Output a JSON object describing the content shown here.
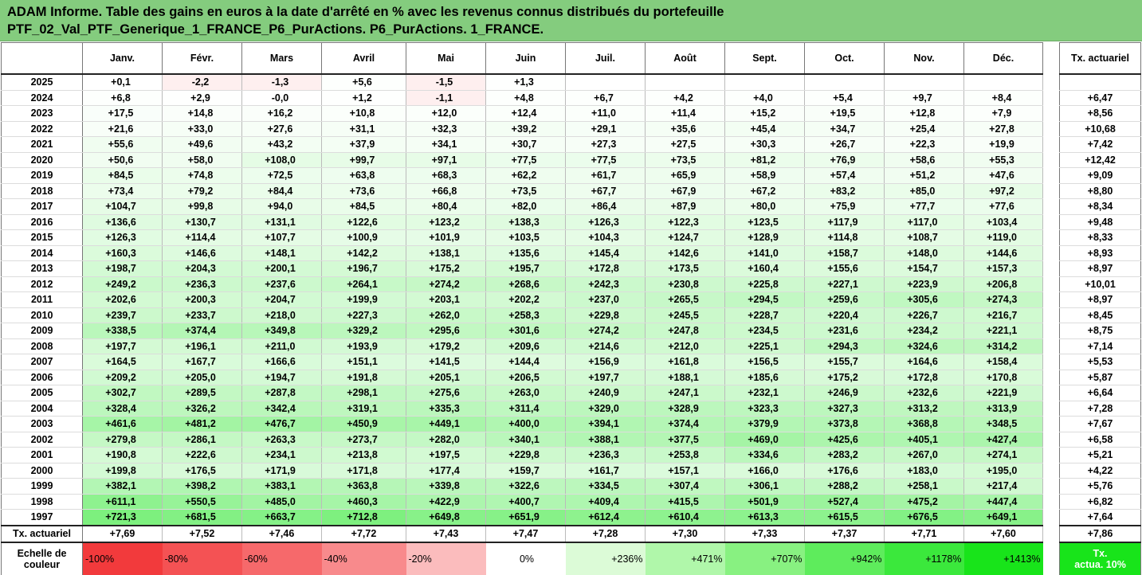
{
  "title": {
    "line1": "ADAM Informe. Table des gains en euros à la date d'arrêté en % avec les revenus connus distribués du portefeuille",
    "line2": "PTF_02_Val_PTF_Generique_1_FRANCE_P6_PurActions. P6_PurActions. 1_FRANCE."
  },
  "months": [
    "Janv.",
    "Févr.",
    "Mars",
    "Avril",
    "Mai",
    "Juin",
    "Juil.",
    "Août",
    "Sept.",
    "Oct.",
    "Nov.",
    "Déc."
  ],
  "actuarial_header": "Tx. actuariel",
  "rows": [
    {
      "year": "2025",
      "values": [
        "+0,1",
        "-2,2",
        "-1,3",
        "+5,6",
        "-1,5",
        "+1,3",
        "",
        "",
        "",
        "",
        "",
        ""
      ],
      "rate": ""
    },
    {
      "year": "2024",
      "values": [
        "+6,8",
        "+2,9",
        "-0,0",
        "+1,2",
        "-1,1",
        "+4,8",
        "+6,7",
        "+4,2",
        "+4,0",
        "+5,4",
        "+9,7",
        "+8,4"
      ],
      "rate": "+6,47"
    },
    {
      "year": "2023",
      "values": [
        "+17,5",
        "+14,8",
        "+16,2",
        "+10,8",
        "+12,0",
        "+12,4",
        "+11,0",
        "+11,4",
        "+15,2",
        "+19,5",
        "+12,8",
        "+7,9"
      ],
      "rate": "+8,56"
    },
    {
      "year": "2022",
      "values": [
        "+21,6",
        "+33,0",
        "+27,6",
        "+31,1",
        "+32,3",
        "+39,2",
        "+29,1",
        "+35,6",
        "+45,4",
        "+34,7",
        "+25,4",
        "+27,8"
      ],
      "rate": "+10,68"
    },
    {
      "year": "2021",
      "values": [
        "+55,6",
        "+49,6",
        "+43,2",
        "+37,9",
        "+34,1",
        "+30,7",
        "+27,3",
        "+27,5",
        "+30,3",
        "+26,7",
        "+22,3",
        "+19,9"
      ],
      "rate": "+7,42"
    },
    {
      "year": "2020",
      "values": [
        "+50,6",
        "+58,0",
        "+108,0",
        "+99,7",
        "+97,1",
        "+77,5",
        "+77,5",
        "+73,5",
        "+81,2",
        "+76,9",
        "+58,6",
        "+55,3"
      ],
      "rate": "+12,42"
    },
    {
      "year": "2019",
      "values": [
        "+84,5",
        "+74,8",
        "+72,5",
        "+63,8",
        "+68,3",
        "+62,2",
        "+61,7",
        "+65,9",
        "+58,9",
        "+57,4",
        "+51,2",
        "+47,6"
      ],
      "rate": "+9,09"
    },
    {
      "year": "2018",
      "values": [
        "+73,4",
        "+79,2",
        "+84,4",
        "+73,6",
        "+66,8",
        "+73,5",
        "+67,7",
        "+67,9",
        "+67,2",
        "+83,2",
        "+85,0",
        "+97,2"
      ],
      "rate": "+8,80"
    },
    {
      "year": "2017",
      "values": [
        "+104,7",
        "+99,8",
        "+94,0",
        "+84,5",
        "+80,4",
        "+82,0",
        "+86,4",
        "+87,9",
        "+80,0",
        "+75,9",
        "+77,7",
        "+77,6"
      ],
      "rate": "+8,34"
    },
    {
      "year": "2016",
      "values": [
        "+136,6",
        "+130,7",
        "+131,1",
        "+122,6",
        "+123,2",
        "+138,3",
        "+126,3",
        "+122,3",
        "+123,5",
        "+117,9",
        "+117,0",
        "+103,4"
      ],
      "rate": "+9,48"
    },
    {
      "year": "2015",
      "values": [
        "+126,3",
        "+114,4",
        "+107,7",
        "+100,9",
        "+101,9",
        "+103,5",
        "+104,3",
        "+124,7",
        "+128,9",
        "+114,8",
        "+108,7",
        "+119,0"
      ],
      "rate": "+8,33"
    },
    {
      "year": "2014",
      "values": [
        "+160,3",
        "+146,6",
        "+148,1",
        "+142,2",
        "+138,1",
        "+135,6",
        "+145,4",
        "+142,6",
        "+141,0",
        "+158,7",
        "+148,0",
        "+144,6"
      ],
      "rate": "+8,93"
    },
    {
      "year": "2013",
      "values": [
        "+198,7",
        "+204,3",
        "+200,1",
        "+196,7",
        "+175,2",
        "+195,7",
        "+172,8",
        "+173,5",
        "+160,4",
        "+155,6",
        "+154,7",
        "+157,3"
      ],
      "rate": "+8,97"
    },
    {
      "year": "2012",
      "values": [
        "+249,2",
        "+236,3",
        "+237,6",
        "+264,1",
        "+274,2",
        "+268,6",
        "+242,3",
        "+230,8",
        "+225,8",
        "+227,1",
        "+223,9",
        "+206,8"
      ],
      "rate": "+10,01"
    },
    {
      "year": "2011",
      "values": [
        "+202,6",
        "+200,3",
        "+204,7",
        "+199,9",
        "+203,1",
        "+202,2",
        "+237,0",
        "+265,5",
        "+294,5",
        "+259,6",
        "+305,6",
        "+274,3"
      ],
      "rate": "+8,97"
    },
    {
      "year": "2010",
      "values": [
        "+239,7",
        "+233,7",
        "+218,0",
        "+227,3",
        "+262,0",
        "+258,3",
        "+229,8",
        "+245,5",
        "+228,7",
        "+220,4",
        "+226,7",
        "+216,7"
      ],
      "rate": "+8,45"
    },
    {
      "year": "2009",
      "values": [
        "+338,5",
        "+374,4",
        "+349,8",
        "+329,2",
        "+295,6",
        "+301,6",
        "+274,2",
        "+247,8",
        "+234,5",
        "+231,6",
        "+234,2",
        "+221,1"
      ],
      "rate": "+8,75"
    },
    {
      "year": "2008",
      "values": [
        "+197,7",
        "+196,1",
        "+211,0",
        "+193,9",
        "+179,2",
        "+209,6",
        "+214,6",
        "+212,0",
        "+225,1",
        "+294,3",
        "+324,6",
        "+314,2"
      ],
      "rate": "+7,14"
    },
    {
      "year": "2007",
      "values": [
        "+164,5",
        "+167,7",
        "+166,6",
        "+151,1",
        "+141,5",
        "+144,4",
        "+156,9",
        "+161,8",
        "+156,5",
        "+155,7",
        "+164,6",
        "+158,4"
      ],
      "rate": "+5,53"
    },
    {
      "year": "2006",
      "values": [
        "+209,2",
        "+205,0",
        "+194,7",
        "+191,8",
        "+205,1",
        "+206,5",
        "+197,7",
        "+188,1",
        "+185,6",
        "+175,2",
        "+172,8",
        "+170,8"
      ],
      "rate": "+5,87"
    },
    {
      "year": "2005",
      "values": [
        "+302,7",
        "+289,5",
        "+287,8",
        "+298,1",
        "+275,6",
        "+263,0",
        "+240,9",
        "+247,1",
        "+232,1",
        "+246,9",
        "+232,6",
        "+221,9"
      ],
      "rate": "+6,64"
    },
    {
      "year": "2004",
      "values": [
        "+328,4",
        "+326,2",
        "+342,4",
        "+319,1",
        "+335,3",
        "+311,4",
        "+329,0",
        "+328,9",
        "+323,3",
        "+327,3",
        "+313,2",
        "+313,9"
      ],
      "rate": "+7,28"
    },
    {
      "year": "2003",
      "values": [
        "+461,6",
        "+481,2",
        "+476,7",
        "+450,9",
        "+449,1",
        "+400,0",
        "+394,1",
        "+374,4",
        "+379,9",
        "+373,8",
        "+368,8",
        "+348,5"
      ],
      "rate": "+7,67"
    },
    {
      "year": "2002",
      "values": [
        "+279,8",
        "+286,1",
        "+263,3",
        "+273,7",
        "+282,0",
        "+340,1",
        "+388,1",
        "+377,5",
        "+469,0",
        "+425,6",
        "+405,1",
        "+427,4"
      ],
      "rate": "+6,58"
    },
    {
      "year": "2001",
      "values": [
        "+190,8",
        "+222,6",
        "+234,1",
        "+213,8",
        "+197,5",
        "+229,8",
        "+236,3",
        "+253,8",
        "+334,6",
        "+283,2",
        "+267,0",
        "+274,1"
      ],
      "rate": "+5,21"
    },
    {
      "year": "2000",
      "values": [
        "+199,8",
        "+176,5",
        "+171,9",
        "+171,8",
        "+177,4",
        "+159,7",
        "+161,7",
        "+157,1",
        "+166,0",
        "+176,6",
        "+183,0",
        "+195,0"
      ],
      "rate": "+4,22"
    },
    {
      "year": "1999",
      "values": [
        "+382,1",
        "+398,2",
        "+383,1",
        "+363,8",
        "+339,8",
        "+322,6",
        "+334,5",
        "+307,4",
        "+306,1",
        "+288,2",
        "+258,1",
        "+217,4"
      ],
      "rate": "+5,76"
    },
    {
      "year": "1998",
      "values": [
        "+611,1",
        "+550,5",
        "+485,0",
        "+460,3",
        "+422,9",
        "+400,7",
        "+409,4",
        "+415,5",
        "+501,9",
        "+527,4",
        "+475,2",
        "+447,4"
      ],
      "rate": "+6,82"
    },
    {
      "year": "1997",
      "values": [
        "+721,3",
        "+681,5",
        "+663,7",
        "+712,8",
        "+649,8",
        "+651,9",
        "+612,4",
        "+610,4",
        "+613,3",
        "+615,5",
        "+676,5",
        "+649,1"
      ],
      "rate": "+7,64"
    }
  ],
  "footer": {
    "label": "Tx. actuariel",
    "values": [
      "+7,69",
      "+7,52",
      "+7,46",
      "+7,72",
      "+7,43",
      "+7,47",
      "+7,28",
      "+7,30",
      "+7,33",
      "+7,37",
      "+7,71",
      "+7,60"
    ],
    "rate": "+7,86"
  },
  "legend": {
    "label_line1": "Echelle de",
    "label_line2": "couleur",
    "swatches": [
      {
        "label": "-100%",
        "color": "#f23a3c"
      },
      {
        "label": "-80%",
        "color": "#f45254"
      },
      {
        "label": "-60%",
        "color": "#f6696b"
      },
      {
        "label": "-40%",
        "color": "#f88a8c"
      },
      {
        "label": "-20%",
        "color": "#fbbcbd"
      },
      {
        "label": "0%",
        "color": "#ffffff"
      },
      {
        "label": "+236%",
        "color": "#dcfbd7"
      },
      {
        "label": "+471%",
        "color": "#b0f7aa"
      },
      {
        "label": "+707%",
        "color": "#88f181"
      },
      {
        "label": "+942%",
        "color": "#5eec5c"
      },
      {
        "label": "+1178%",
        "color": "#3be83c"
      },
      {
        "label": "+1413%",
        "color": "#18e41a"
      }
    ],
    "actuarial_line1": "Tx.",
    "actuarial_line2": "actua. 10%"
  },
  "colors": {
    "title_bg": "#84cc7e",
    "max_green": "#18e41a",
    "max_red": "#f23a3c"
  },
  "scale": {
    "pos_max": 1413,
    "neg_max": 100
  }
}
